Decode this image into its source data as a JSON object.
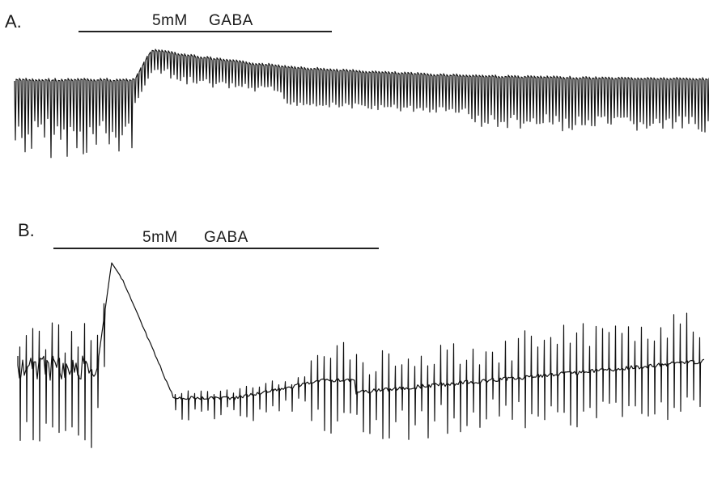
{
  "panels": [
    {
      "label": "A.",
      "application": {
        "concentration": "5mM",
        "drug": "GABA"
      }
    },
    {
      "label": "B.",
      "application": {
        "concentration": "5mM",
        "drug": "GABA"
      }
    }
  ],
  "trace_color": "#111111"
}
